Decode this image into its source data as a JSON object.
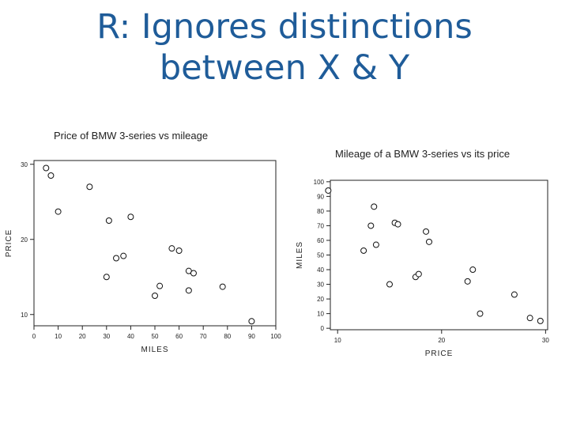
{
  "slide": {
    "title_line1": "R: Ignores distinctions",
    "title_line2": "between X & Y"
  },
  "chart_data": [
    {
      "type": "scatter",
      "title": "Price of BMW 3-series vs mileage",
      "xlabel": "MILES",
      "ylabel": "PRICE",
      "xlim": [
        0,
        100
      ],
      "ylim": [
        8.5,
        30.5
      ],
      "xticks": [
        0,
        10,
        20,
        30,
        40,
        50,
        60,
        70,
        80,
        90,
        100
      ],
      "yticks": [
        10,
        20,
        30
      ],
      "grid": false,
      "points": [
        {
          "x": 5,
          "y": 29.5
        },
        {
          "x": 7,
          "y": 28.5
        },
        {
          "x": 10,
          "y": 23.7
        },
        {
          "x": 23,
          "y": 27
        },
        {
          "x": 30,
          "y": 15
        },
        {
          "x": 31,
          "y": 22.5
        },
        {
          "x": 34,
          "y": 17.5
        },
        {
          "x": 37,
          "y": 17.8
        },
        {
          "x": 40,
          "y": 23
        },
        {
          "x": 50,
          "y": 12.5
        },
        {
          "x": 52,
          "y": 13.8
        },
        {
          "x": 57,
          "y": 18.8
        },
        {
          "x": 60,
          "y": 18.5
        },
        {
          "x": 64,
          "y": 15.8
        },
        {
          "x": 66,
          "y": 15.5
        },
        {
          "x": 64,
          "y": 13.2
        },
        {
          "x": 78,
          "y": 13.7
        },
        {
          "x": 90,
          "y": 9.1
        }
      ]
    },
    {
      "type": "scatter",
      "title": "Mileage of a BMW 3-series vs its price",
      "xlabel": "PRICE",
      "ylabel": "MILES",
      "xlim": [
        9.3,
        30.2
      ],
      "ylim": [
        -1,
        101
      ],
      "xticks": [
        10,
        20,
        30
      ],
      "yticks": [
        0,
        10,
        20,
        30,
        40,
        50,
        60,
        70,
        80,
        90,
        100
      ],
      "grid": false,
      "points": [
        {
          "x": 9.1,
          "y": 94
        },
        {
          "x": 12.5,
          "y": 53
        },
        {
          "x": 13.2,
          "y": 70
        },
        {
          "x": 13.5,
          "y": 83
        },
        {
          "x": 13.7,
          "y": 57
        },
        {
          "x": 15,
          "y": 30
        },
        {
          "x": 15.5,
          "y": 72
        },
        {
          "x": 15.8,
          "y": 71
        },
        {
          "x": 17.5,
          "y": 35
        },
        {
          "x": 17.8,
          "y": 37
        },
        {
          "x": 18.5,
          "y": 66
        },
        {
          "x": 18.8,
          "y": 59
        },
        {
          "x": 22.5,
          "y": 32
        },
        {
          "x": 23,
          "y": 40
        },
        {
          "x": 23.7,
          "y": 10
        },
        {
          "x": 27,
          "y": 23
        },
        {
          "x": 28.5,
          "y": 7
        },
        {
          "x": 29.5,
          "y": 5
        }
      ]
    }
  ]
}
